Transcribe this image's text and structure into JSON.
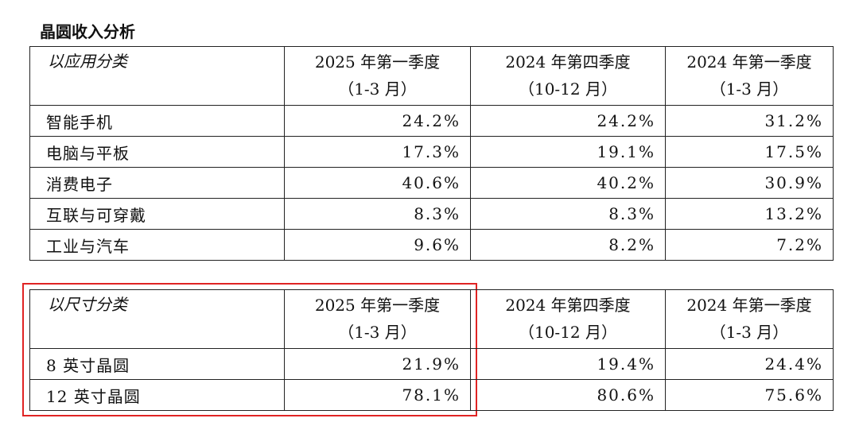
{
  "title": "晶圆收入分析",
  "tables": [
    {
      "header": {
        "category": "以应用分类",
        "periods": [
          {
            "quarter": "2025 年第一季度",
            "months": "（1-3 月）"
          },
          {
            "quarter": "2024 年第四季度",
            "months": "（10-12 月）"
          },
          {
            "quarter": "2024 年第一季度",
            "months": "（1-3 月）"
          }
        ]
      },
      "rows": [
        {
          "label": "智能手机",
          "values": [
            "24.2%",
            "24.2%",
            "31.2%"
          ]
        },
        {
          "label": "电脑与平板",
          "values": [
            "17.3%",
            "19.1%",
            "17.5%"
          ]
        },
        {
          "label": "消费电子",
          "values": [
            "40.6%",
            "40.2%",
            "30.9%"
          ]
        },
        {
          "label": "互联与可穿戴",
          "values": [
            "8.3%",
            "8.3%",
            "13.2%"
          ]
        },
        {
          "label": "工业与汽车",
          "values": [
            "9.6%",
            "8.2%",
            "7.2%"
          ]
        }
      ]
    },
    {
      "header": {
        "category": "以尺寸分类",
        "periods": [
          {
            "quarter": "2025 年第一季度",
            "months": "（1-3 月）"
          },
          {
            "quarter": "2024 年第四季度",
            "months": "（10-12 月）"
          },
          {
            "quarter": "2024 年第一季度",
            "months": "（1-3 月）"
          }
        ]
      },
      "rows": [
        {
          "label": "8 英寸晶圆",
          "values": [
            "21.9%",
            "19.4%",
            "24.4%"
          ]
        },
        {
          "label": "12 英寸晶圆",
          "values": [
            "78.1%",
            "80.6%",
            "75.6%"
          ]
        }
      ]
    }
  ]
}
